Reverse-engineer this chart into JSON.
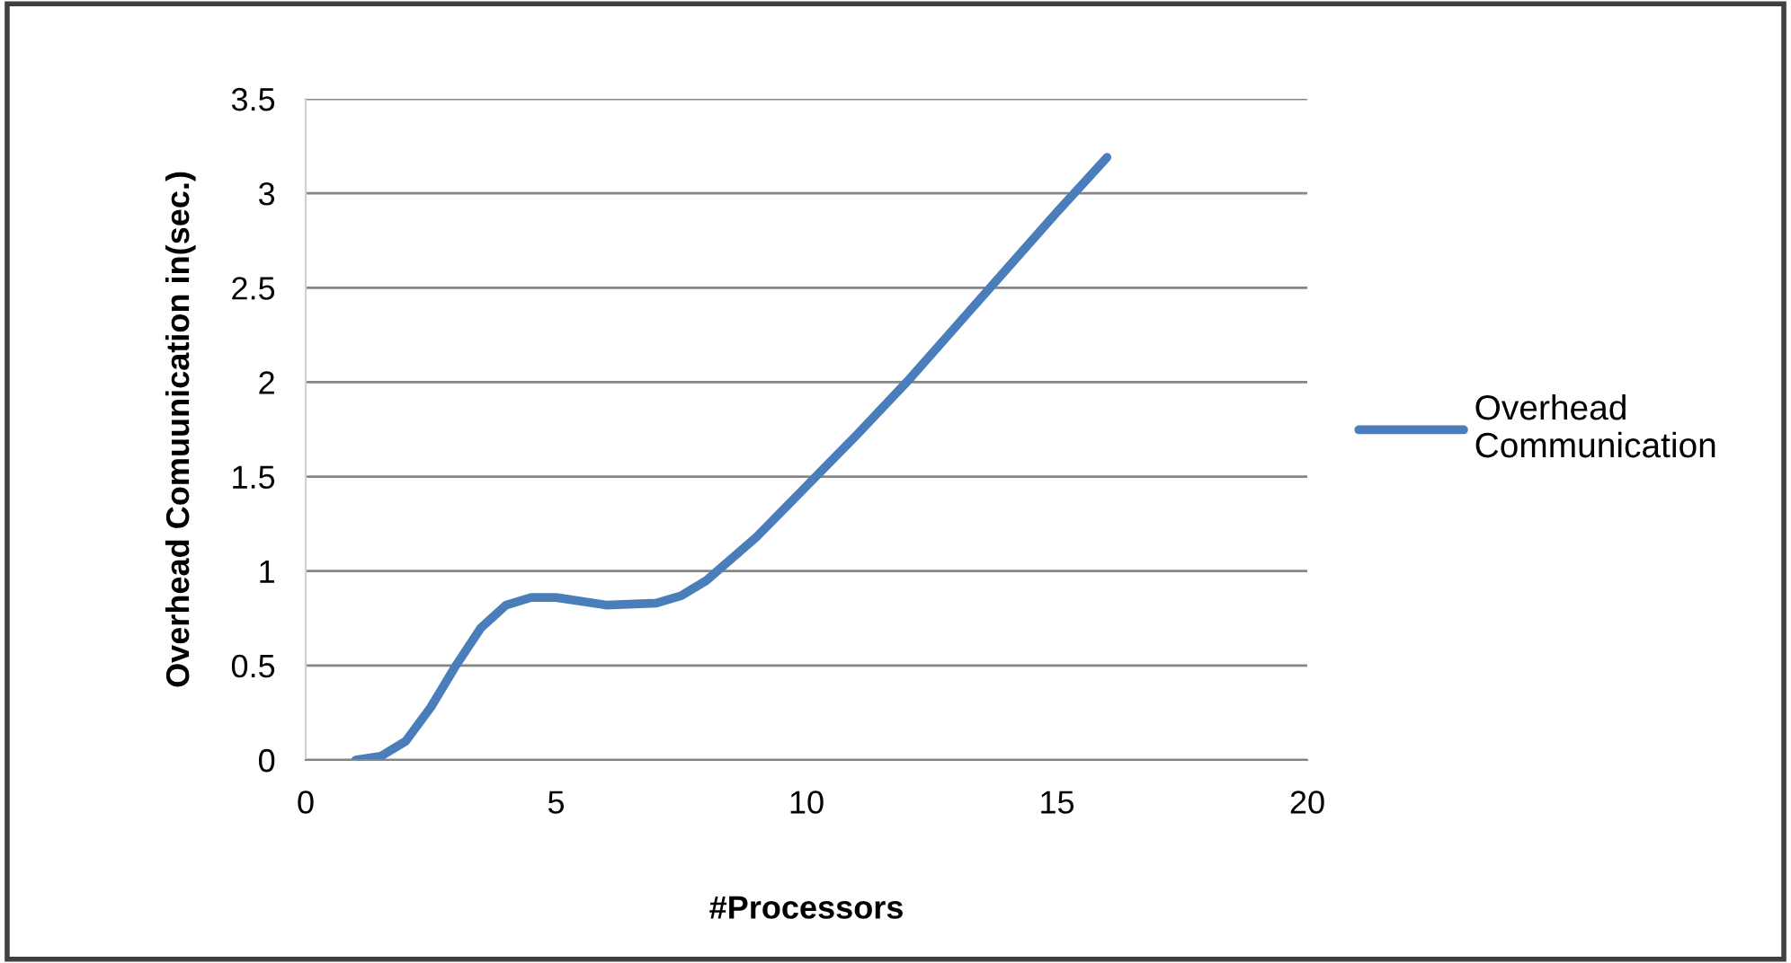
{
  "chart_data": {
    "type": "line",
    "xlabel": "#Processors",
    "ylabel": "Overhead Comuunication in(sec.)",
    "xlim": [
      0,
      20
    ],
    "xticks": [
      0,
      5,
      10,
      15,
      20
    ],
    "ylim": [
      0,
      3.5
    ],
    "yticks": [
      0,
      0.5,
      1,
      1.5,
      2,
      2.5,
      3,
      3.5
    ],
    "grid": "y",
    "legend": "right",
    "marker": "none",
    "line_style": "solid",
    "series": [
      {
        "name": "Overhead Communication",
        "color": "#4a7ebb",
        "x": [
          1,
          1.5,
          2,
          2.5,
          3,
          3.5,
          4,
          4.5,
          5,
          6,
          7,
          7.5,
          8,
          9,
          10,
          11,
          12,
          13,
          14,
          15,
          16
        ],
        "values": [
          0,
          0.02,
          0.1,
          0.28,
          0.5,
          0.7,
          0.82,
          0.86,
          0.86,
          0.82,
          0.83,
          0.87,
          0.95,
          1.18,
          1.45,
          1.72,
          2.0,
          2.3,
          2.6,
          2.9,
          3.19
        ]
      }
    ]
  }
}
